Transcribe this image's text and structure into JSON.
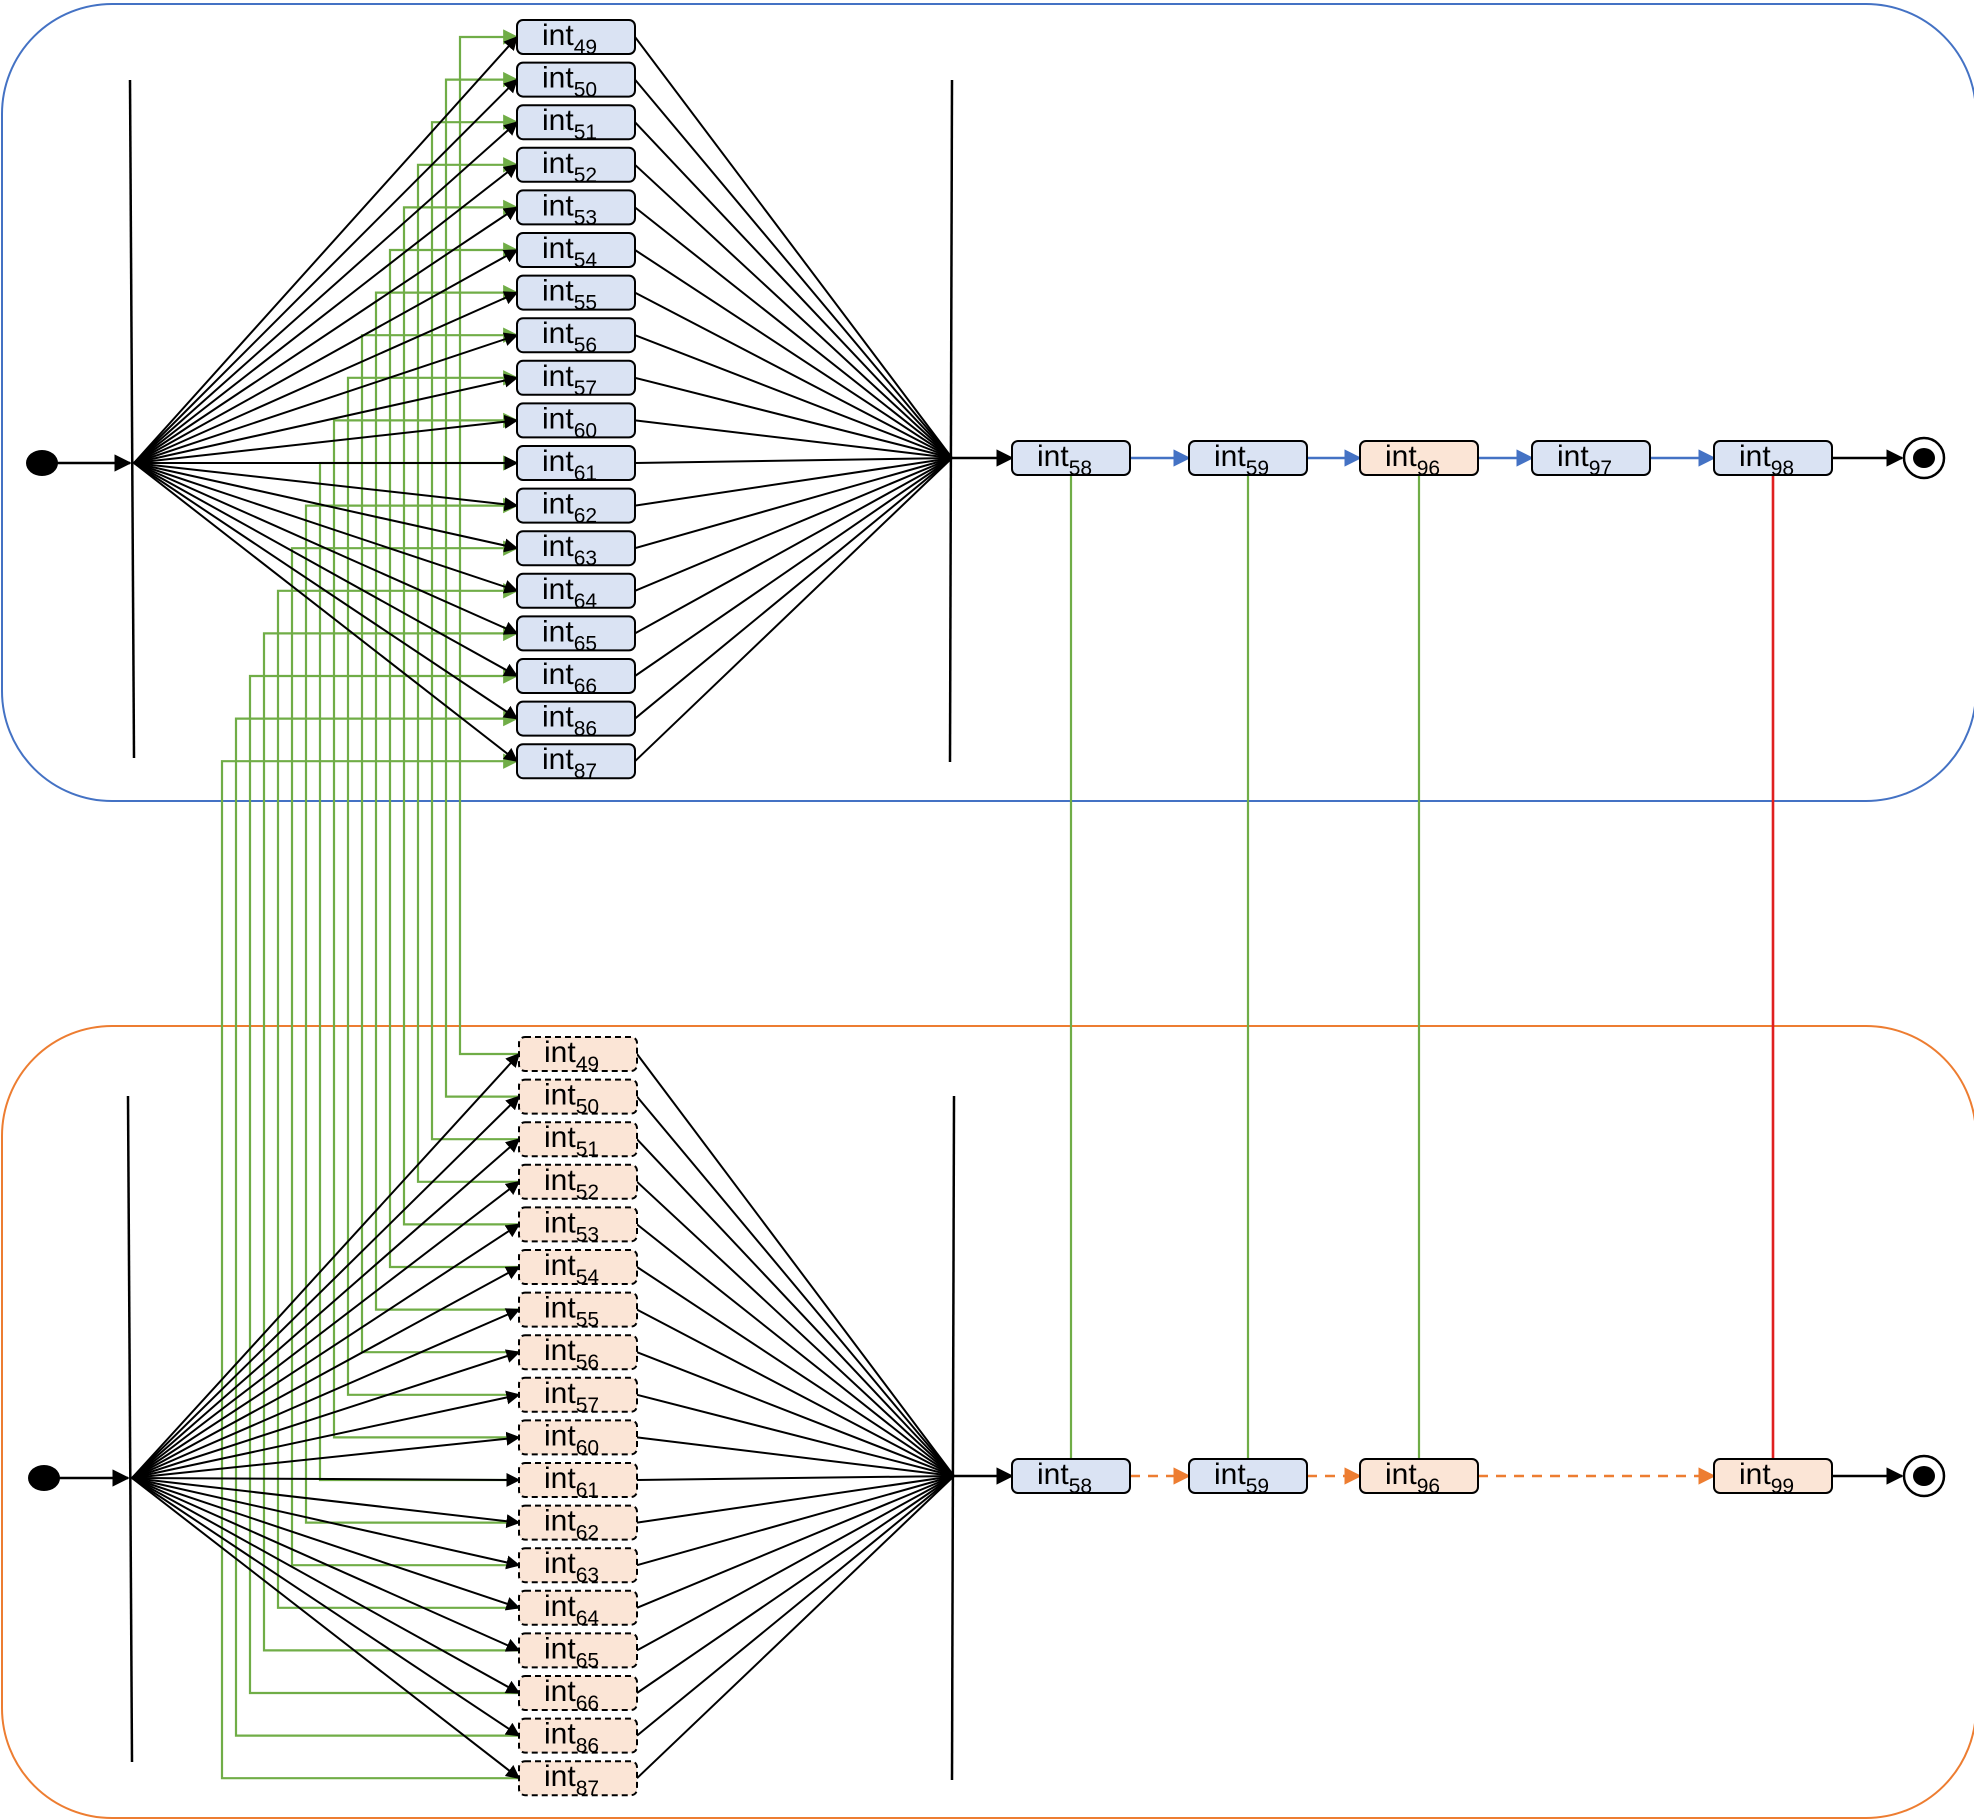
{
  "colors": {
    "blue_fill": "#dae3f3",
    "orange_fill": "#fbe5d6",
    "top_border": "#4472c4",
    "bottom_border": "#ed7d31",
    "green": "#70ad47",
    "red": "#e02020",
    "black": "#000000"
  },
  "node_prefix": "int",
  "lanes": [
    {
      "id": "top",
      "fork_nodes": [
        "49",
        "50",
        "51",
        "52",
        "53",
        "54",
        "55",
        "56",
        "57",
        "60",
        "61",
        "62",
        "63",
        "64",
        "65",
        "66",
        "86",
        "87"
      ],
      "chain": [
        {
          "sub": "58",
          "fill": "blue"
        },
        {
          "sub": "59",
          "fill": "blue"
        },
        {
          "sub": "96",
          "fill": "orange"
        },
        {
          "sub": "97",
          "fill": "blue"
        },
        {
          "sub": "98",
          "fill": "blue"
        }
      ]
    },
    {
      "id": "bottom",
      "fork_nodes": [
        "49",
        "50",
        "51",
        "52",
        "53",
        "54",
        "55",
        "56",
        "57",
        "60",
        "61",
        "62",
        "63",
        "64",
        "65",
        "66",
        "86",
        "87"
      ],
      "chain": [
        {
          "sub": "58",
          "fill": "blue"
        },
        {
          "sub": "59",
          "fill": "blue"
        },
        {
          "sub": "96",
          "fill": "orange"
        },
        {
          "sub": "99",
          "fill": "orange"
        }
      ]
    }
  ]
}
